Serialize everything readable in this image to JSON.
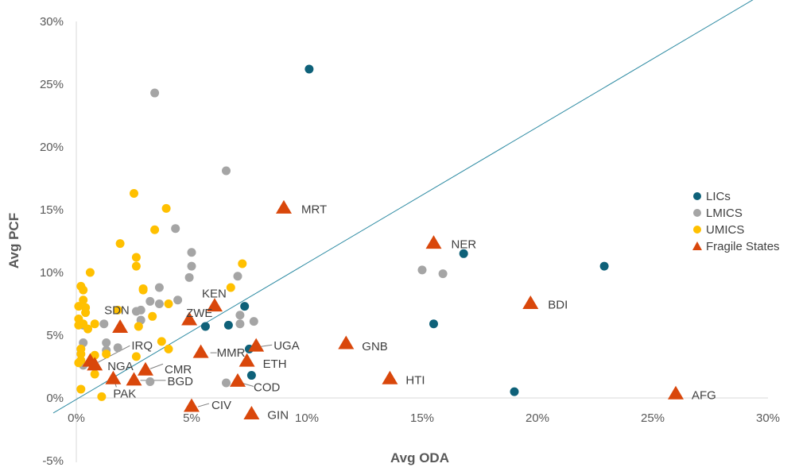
{
  "chart_data": {
    "type": "scatter",
    "title": "",
    "xlabel": "Avg ODA",
    "ylabel": "Avg PCF",
    "xlim": [
      0,
      30
    ],
    "ylim": [
      -5,
      30
    ],
    "xticks": [
      0,
      5,
      10,
      15,
      20,
      25,
      30
    ],
    "yticks": [
      -5,
      0,
      5,
      10,
      15,
      20,
      25,
      30
    ],
    "xtick_labels": [
      "0%",
      "5%",
      "10%",
      "15%",
      "20%",
      "25%",
      "30%"
    ],
    "ytick_labels": [
      "-5%",
      "0%",
      "5%",
      "10%",
      "15%",
      "20%",
      "25%",
      "30%"
    ],
    "reference_line": {
      "label": "45-degree line",
      "x": [
        -1,
        29.6
      ],
      "y": [
        -1.2,
        32
      ],
      "color": "#2e8ba3"
    },
    "legend_position": "right",
    "series": [
      {
        "name": "LICs",
        "marker": "circle",
        "color": "#0e6179",
        "points": [
          {
            "x": 10.1,
            "y": 26.2
          },
          {
            "x": 16.8,
            "y": 11.5
          },
          {
            "x": 22.9,
            "y": 10.5
          },
          {
            "x": 7.3,
            "y": 7.3
          },
          {
            "x": 6.6,
            "y": 5.8
          },
          {
            "x": 5.6,
            "y": 5.7
          },
          {
            "x": 15.5,
            "y": 5.9
          },
          {
            "x": 7.5,
            "y": 3.9
          },
          {
            "x": 7.6,
            "y": 1.8
          },
          {
            "x": 19.0,
            "y": 0.5
          }
        ]
      },
      {
        "name": "LMICS",
        "marker": "circle",
        "color": "#a5a5a5",
        "points": [
          {
            "x": 3.4,
            "y": 24.3
          },
          {
            "x": 6.5,
            "y": 18.1
          },
          {
            "x": 4.3,
            "y": 13.5
          },
          {
            "x": 5.0,
            "y": 11.6
          },
          {
            "x": 5.0,
            "y": 10.5
          },
          {
            "x": 4.9,
            "y": 9.6
          },
          {
            "x": 7.0,
            "y": 9.7
          },
          {
            "x": 15.0,
            "y": 10.2
          },
          {
            "x": 15.9,
            "y": 9.9
          },
          {
            "x": 3.6,
            "y": 8.8
          },
          {
            "x": 3.2,
            "y": 7.7
          },
          {
            "x": 3.6,
            "y": 7.5
          },
          {
            "x": 4.4,
            "y": 7.8
          },
          {
            "x": 2.8,
            "y": 7.0
          },
          {
            "x": 2.6,
            "y": 6.9
          },
          {
            "x": 2.8,
            "y": 6.2
          },
          {
            "x": 7.1,
            "y": 6.6
          },
          {
            "x": 7.1,
            "y": 5.9
          },
          {
            "x": 7.7,
            "y": 6.1
          },
          {
            "x": 1.2,
            "y": 5.9
          },
          {
            "x": 0.3,
            "y": 5.8
          },
          {
            "x": 0.3,
            "y": 4.4
          },
          {
            "x": 1.3,
            "y": 4.4
          },
          {
            "x": 1.3,
            "y": 3.8
          },
          {
            "x": 1.8,
            "y": 4.0
          },
          {
            "x": 0.3,
            "y": 2.6
          },
          {
            "x": 3.2,
            "y": 1.3
          },
          {
            "x": 6.5,
            "y": 1.2
          }
        ]
      },
      {
        "name": "UMICS",
        "marker": "circle",
        "color": "#ffc000",
        "points": [
          {
            "x": 2.5,
            "y": 16.3
          },
          {
            "x": 3.9,
            "y": 15.1
          },
          {
            "x": 3.4,
            "y": 13.4
          },
          {
            "x": 1.9,
            "y": 12.3
          },
          {
            "x": 2.6,
            "y": 11.2
          },
          {
            "x": 2.6,
            "y": 10.5
          },
          {
            "x": 7.2,
            "y": 10.7
          },
          {
            "x": 0.6,
            "y": 10.0
          },
          {
            "x": 0.2,
            "y": 8.9
          },
          {
            "x": 0.3,
            "y": 8.6
          },
          {
            "x": 2.9,
            "y": 8.7
          },
          {
            "x": 2.9,
            "y": 8.6
          },
          {
            "x": 6.7,
            "y": 8.8
          },
          {
            "x": 0.3,
            "y": 7.8
          },
          {
            "x": 0.4,
            "y": 7.2
          },
          {
            "x": 0.1,
            "y": 7.3
          },
          {
            "x": 0.4,
            "y": 6.8
          },
          {
            "x": 4.0,
            "y": 7.5
          },
          {
            "x": 1.8,
            "y": 7.0
          },
          {
            "x": 3.3,
            "y": 6.5
          },
          {
            "x": 0.1,
            "y": 6.3
          },
          {
            "x": 0.1,
            "y": 5.8
          },
          {
            "x": 0.3,
            "y": 5.9
          },
          {
            "x": 0.5,
            "y": 5.5
          },
          {
            "x": 0.8,
            "y": 5.9
          },
          {
            "x": 2.7,
            "y": 5.7
          },
          {
            "x": 3.7,
            "y": 4.5
          },
          {
            "x": 4.0,
            "y": 3.9
          },
          {
            "x": 0.2,
            "y": 3.9
          },
          {
            "x": 0.2,
            "y": 3.5
          },
          {
            "x": 0.2,
            "y": 3.0
          },
          {
            "x": 0.1,
            "y": 2.8
          },
          {
            "x": 0.8,
            "y": 3.4
          },
          {
            "x": 1.3,
            "y": 3.5
          },
          {
            "x": 2.6,
            "y": 3.3
          },
          {
            "x": 0.8,
            "y": 1.9
          },
          {
            "x": 0.2,
            "y": 0.7
          },
          {
            "x": 1.1,
            "y": 0.1
          }
        ]
      },
      {
        "name": "Fragile States",
        "marker": "triangle",
        "color": "#d9470b",
        "points": [
          {
            "x": 9.0,
            "y": 15.1,
            "label": "MRT"
          },
          {
            "x": 15.5,
            "y": 12.3,
            "label": "NER"
          },
          {
            "x": 19.7,
            "y": 7.5,
            "label": "BDI"
          },
          {
            "x": 6.0,
            "y": 7.3,
            "label": "KEN"
          },
          {
            "x": 4.9,
            "y": 6.2,
            "label": "ZWE"
          },
          {
            "x": 1.9,
            "y": 5.6,
            "label": "SDN"
          },
          {
            "x": 11.7,
            "y": 4.3,
            "label": "GNB"
          },
          {
            "x": 7.8,
            "y": 4.1,
            "label": "UGA"
          },
          {
            "x": 5.4,
            "y": 3.6,
            "label": "MMR"
          },
          {
            "x": 7.4,
            "y": 2.9,
            "label": "ETH"
          },
          {
            "x": 0.8,
            "y": 2.6,
            "label": "NGA"
          },
          {
            "x": 3.0,
            "y": 2.2,
            "label": "CMR"
          },
          {
            "x": 1.6,
            "y": 1.5,
            "label": "PAK"
          },
          {
            "x": 2.5,
            "y": 1.4,
            "label": "BGD"
          },
          {
            "x": 13.6,
            "y": 1.5,
            "label": "HTI"
          },
          {
            "x": 7.0,
            "y": 1.3,
            "label": "COD"
          },
          {
            "x": 0.6,
            "y": 2.9,
            "label": "IRQ"
          },
          {
            "x": 26.0,
            "y": 0.3,
            "label": "AFG"
          },
          {
            "x": 5.0,
            "y": -0.7,
            "label": "CIV"
          },
          {
            "x": 7.6,
            "y": -1.3,
            "label": "GIN"
          }
        ]
      }
    ]
  }
}
